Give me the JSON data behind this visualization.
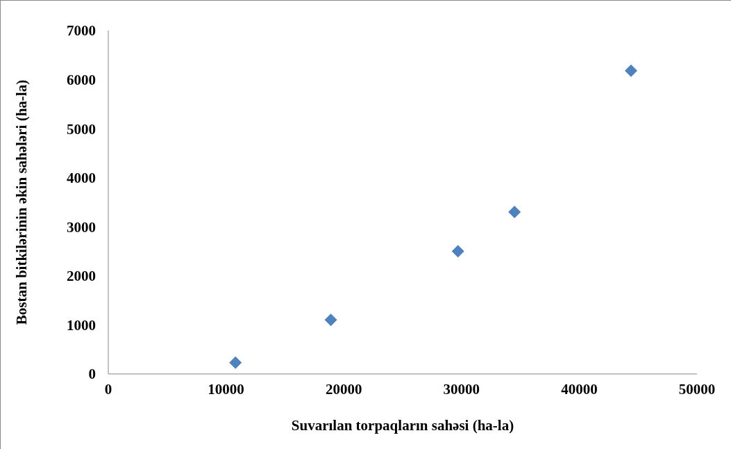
{
  "chart_data": {
    "type": "scatter",
    "xlabel": "Suvarılan torpaqların sahəsi (ha-la)",
    "ylabel": "Bostan bitkilərinin əkin sahələri (ha-la)",
    "x": [
      10800,
      18900,
      29700,
      34500,
      44400
    ],
    "values": [
      230,
      1100,
      2500,
      3300,
      6180
    ],
    "color": "#4f81bd",
    "marker": "diamond",
    "xlim": [
      0,
      50000
    ],
    "xticks": [
      0,
      10000,
      20000,
      30000,
      40000,
      50000
    ],
    "ylim": [
      0,
      7000
    ],
    "yticks": [
      0,
      1000,
      2000,
      3000,
      4000,
      5000,
      6000,
      7000
    ]
  }
}
